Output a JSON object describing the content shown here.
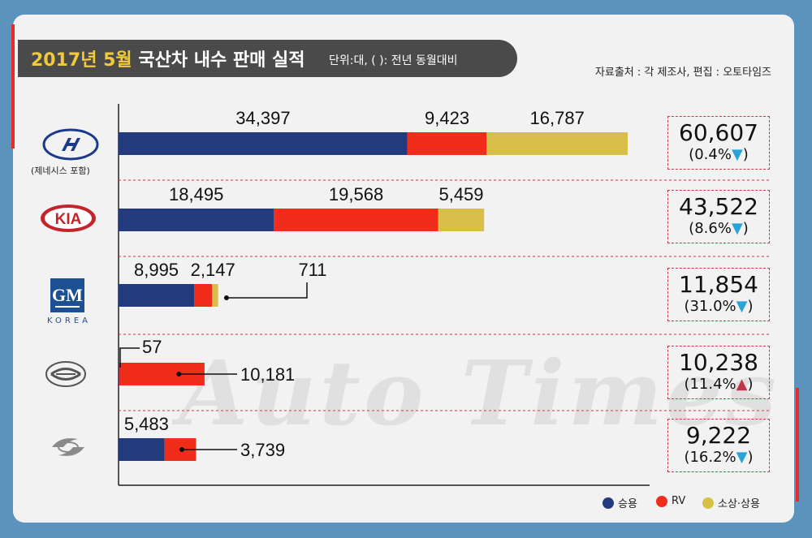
{
  "title": {
    "year_month": "2017년 5월",
    "main": "국산차 내수 판매 실적",
    "unit": "단위:대, ( ): 전년 동월대비"
  },
  "source": "자료출처 : 각 제조사, 편집 : 오토타임즈",
  "watermark": "Auto Times",
  "colors": {
    "passenger": "#233a7c",
    "rv": "#f02d1a",
    "commercial": "#d8bf4a",
    "down_arrow": "#2aa3d8",
    "up_arrow": "#c3344a"
  },
  "chart_data": {
    "type": "bar",
    "orientation": "horizontal",
    "stacked": true,
    "categories": [
      "Hyundai",
      "Kia",
      "GM Korea",
      "SsangYong",
      "Renault Samsung"
    ],
    "series": [
      {
        "name": "승용",
        "values": [
          34397,
          18495,
          8995,
          57,
          5483
        ]
      },
      {
        "name": "RV",
        "values": [
          9423,
          19568,
          2147,
          10181,
          3739
        ]
      },
      {
        "name": "소상·상용",
        "values": [
          16787,
          5459,
          711,
          0,
          0
        ]
      }
    ],
    "value_labels": [
      [
        "34,397",
        "9,423",
        "16,787"
      ],
      [
        "18,495",
        "19,568",
        "5,459"
      ],
      [
        "8,995",
        "2,147",
        "711"
      ],
      [
        "57",
        "10,181",
        ""
      ],
      [
        "5,483",
        "3,739",
        ""
      ]
    ],
    "totals": [
      "60,607",
      "43,522",
      "11,854",
      "10,238",
      "9,222"
    ],
    "yoy_change": [
      "(0.4%",
      "(8.6%",
      "(31.0%",
      "(11.4%",
      "(16.2%"
    ],
    "yoy_direction": [
      "down",
      "down",
      "down",
      "up",
      "down"
    ],
    "legend_position": "bottom-right"
  },
  "logos": {
    "hyundai_caption": "(제네시스 포함)",
    "gm_text": "GM",
    "gm_caption": "KOREA",
    "kia_text": "KIA"
  },
  "legend": [
    {
      "label": "승용",
      "color": "#233a7c"
    },
    {
      "label": "RV",
      "color": "#f02d1a"
    },
    {
      "label": "소상·상용",
      "color": "#d8bf4a"
    }
  ]
}
